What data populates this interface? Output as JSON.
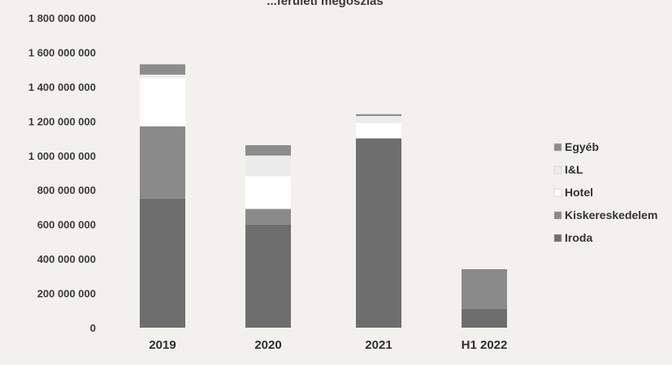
{
  "chart_data": {
    "type": "bar",
    "stacked": true,
    "title": "...ferületi megoszlás",
    "categories": [
      "2019",
      "2020",
      "2021",
      "H1 2022"
    ],
    "y_tick_labels": [
      "0",
      "200 000 000",
      "400 000 000",
      "600 000 000",
      "800 000 000",
      "1 000 000 000",
      "1 200 000 000",
      "1 400 000 000",
      "1 600 000 000",
      "1 800 000 000"
    ],
    "ylim": [
      0,
      1800000000
    ],
    "grid": false,
    "legend_position": "right",
    "series": [
      {
        "name": "Iroda",
        "color": "#6e6e6e",
        "values": [
          750000000,
          600000000,
          1100000000,
          110000000
        ]
      },
      {
        "name": "Kiskereskedelem",
        "color": "#8a8a8a",
        "values": [
          420000000,
          90000000,
          0,
          230000000
        ]
      },
      {
        "name": "Hotel",
        "color": "#ffffff",
        "values": [
          280000000,
          190000000,
          90000000,
          0
        ]
      },
      {
        "name": "I&L",
        "color": "#ececec",
        "values": [
          20000000,
          120000000,
          40000000,
          0
        ]
      },
      {
        "name": "Egyéb",
        "color": "#8c8c8c",
        "values": [
          60000000,
          60000000,
          10000000,
          0
        ]
      }
    ]
  }
}
